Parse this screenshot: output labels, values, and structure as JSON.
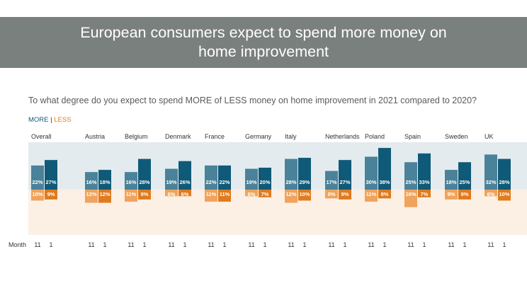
{
  "banner": {
    "title": "European consumers expect to spend more money on home improvement"
  },
  "question": "To what degree do you expect to spend MORE of LESS money on home improvement in 2021 compared to 2020?",
  "legend": {
    "more": "MORE",
    "separator": "|",
    "less": "LESS"
  },
  "x_axis_label": "Month",
  "colors": {
    "more_11": "#4a8299",
    "more_1": "#0f5a78",
    "less_11": "#f0a35c",
    "less_1": "#e07b1e",
    "more_band": "#e3ebef",
    "less_band": "#fcefe3"
  },
  "chart_data": {
    "type": "bar",
    "categories": [
      "Overall",
      "Austria",
      "Belgium",
      "Denmark",
      "France",
      "Germany",
      "Italy",
      "Netherlands",
      "Poland",
      "Spain",
      "Sweden",
      "UK"
    ],
    "months": [
      "11",
      "1"
    ],
    "more": {
      "m11": [
        22,
        16,
        16,
        19,
        22,
        19,
        28,
        17,
        30,
        25,
        18,
        32
      ],
      "m1": [
        27,
        18,
        28,
        26,
        22,
        20,
        29,
        27,
        38,
        33,
        25,
        28
      ]
    },
    "less": {
      "m11": [
        10,
        12,
        11,
        6,
        11,
        6,
        12,
        8,
        11,
        16,
        9,
        6
      ],
      "m1": [
        9,
        12,
        9,
        6,
        11,
        7,
        10,
        9,
        8,
        7,
        9,
        10
      ]
    },
    "more_labels": {
      "m11": [
        "22%",
        "16%",
        "16%",
        "19%",
        "22%",
        "19%",
        "28%",
        "17%",
        "30%",
        "25%",
        "18%",
        "32%"
      ],
      "m1": [
        "27%",
        "18%",
        "28%",
        "26%",
        "22%",
        "20%",
        "29%",
        "27%",
        "38%",
        "33%",
        "25%",
        "28%"
      ]
    },
    "less_labels": {
      "m11": [
        "10%",
        "12%",
        "11%",
        "6%",
        "11%",
        "6%",
        "12%",
        "8%",
        "11%",
        "16%",
        "9%",
        "6%"
      ],
      "m1": [
        "9%",
        "12%",
        "9%",
        "6%",
        "11%",
        "7%",
        "10%",
        "9%",
        "8%",
        "7%",
        "9%",
        "10%"
      ]
    }
  }
}
